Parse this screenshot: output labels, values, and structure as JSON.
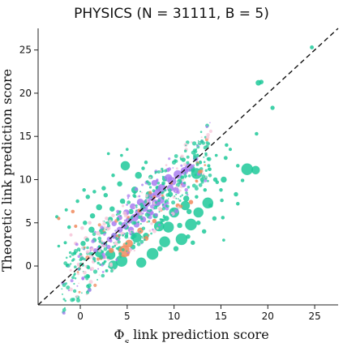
{
  "chart_data": {
    "type": "scatter",
    "title": "PHYSICS (N = 31111, B = 5)",
    "xlabel_prefix": "Φ",
    "xlabel_sub": "s",
    "xlabel_rest": " link prediction score",
    "ylabel": "Theoretic link prediction score",
    "xlim": [
      -4.5,
      27.5
    ],
    "ylim": [
      -4.5,
      27.5
    ],
    "xticks": [
      "0",
      "5",
      "10",
      "15",
      "20",
      "25"
    ],
    "yticks": [
      "0",
      "5",
      "10",
      "15",
      "20",
      "25"
    ],
    "xtick_values": [
      0,
      5,
      10,
      15,
      20,
      25
    ],
    "ytick_values": [
      0,
      5,
      10,
      15,
      20,
      25
    ],
    "reference_line": "y = x (dashed)",
    "grid": false,
    "colors": {
      "green": "#1fc99a",
      "purple": "#a97cf0",
      "orange": "#f08a5d",
      "pink": "#f6c6d8"
    },
    "series": [
      {
        "color_key": "green",
        "points": [
          [
            24.7,
            25.3,
            2.2
          ],
          [
            19.0,
            21.2,
            3.2
          ],
          [
            19.3,
            21.3,
            2.6
          ],
          [
            20.5,
            18.3,
            2.4
          ],
          [
            18.8,
            15.3,
            2.0
          ],
          [
            18.7,
            11.1,
            5.0
          ],
          [
            17.8,
            11.2,
            7.0
          ],
          [
            17.3,
            9.9,
            2.0
          ],
          [
            16.8,
            11.6,
            2.0
          ],
          [
            15.5,
            12.5,
            2.2
          ],
          [
            15.3,
            10.0,
            3.5
          ],
          [
            14.6,
            9.7,
            2.0
          ],
          [
            13.8,
            11.2,
            2.0
          ],
          [
            15.6,
            14.0,
            2.0
          ],
          [
            16.0,
            13.5,
            1.8
          ],
          [
            14.5,
            12.8,
            1.6
          ],
          [
            16.6,
            8.3,
            2.5
          ],
          [
            15.0,
            8.8,
            2.0
          ],
          [
            14.4,
            10.0,
            2.5
          ],
          [
            13.3,
            8.8,
            2.0
          ],
          [
            13.9,
            7.0,
            2.5
          ],
          [
            15.1,
            7.6,
            2.0
          ],
          [
            16.8,
            7.2,
            2.0
          ],
          [
            15.2,
            5.6,
            2.0
          ],
          [
            15.3,
            3.0,
            1.6
          ],
          [
            14.3,
            5.5,
            2.5
          ],
          [
            13.7,
            11.6,
            1.8
          ],
          [
            12.4,
            8.0,
            2.0
          ],
          [
            12.4,
            10.7,
            6.5
          ],
          [
            13.6,
            7.3,
            6.5
          ],
          [
            12.6,
            6.2,
            6.0
          ],
          [
            11.8,
            4.8,
            7.0
          ],
          [
            10.8,
            3.1,
            7.0
          ],
          [
            9.0,
            2.8,
            6.5
          ],
          [
            9.4,
            4.5,
            6.5
          ],
          [
            7.7,
            1.4,
            7.0
          ],
          [
            6.5,
            0.4,
            6.0
          ],
          [
            4.4,
            0.6,
            7.0
          ],
          [
            3.2,
            1.3,
            6.0
          ],
          [
            3.5,
            0.1,
            5.5
          ],
          [
            2.0,
            1.5,
            5.0
          ],
          [
            6.0,
            3.3,
            6.0
          ],
          [
            8.4,
            4.6,
            6.0
          ],
          [
            10.0,
            6.2,
            6.0
          ],
          [
            11.2,
            7.0,
            5.5
          ],
          [
            4.8,
            11.6,
            5.5
          ],
          [
            5.0,
            13.5,
            1.6
          ],
          [
            4.4,
            12.8,
            1.6
          ],
          [
            3.0,
            13.0,
            1.6
          ],
          [
            7.0,
            12.0,
            2.0
          ],
          [
            6.2,
            10.5,
            4.0
          ],
          [
            5.8,
            8.8,
            4.0
          ],
          [
            4.2,
            9.5,
            3.0
          ],
          [
            3.5,
            10.5,
            2.0
          ],
          [
            2.5,
            9.0,
            2.5
          ],
          [
            1.5,
            8.6,
            2.0
          ],
          [
            0.4,
            8.8,
            2.0
          ],
          [
            0.8,
            8.0,
            2.5
          ],
          [
            -0.3,
            7.5,
            2.0
          ],
          [
            -2.5,
            5.7,
            1.8
          ],
          [
            -1.5,
            6.5,
            1.8
          ],
          [
            -1.2,
            4.5,
            2.0
          ],
          [
            -1.6,
            2.7,
            1.8
          ],
          [
            -0.6,
            1.5,
            1.8
          ],
          [
            -2.3,
            2.3,
            1.5
          ],
          [
            0.3,
            2.6,
            3.0
          ],
          [
            1.2,
            4.2,
            3.5
          ],
          [
            2.3,
            4.0,
            3.5
          ],
          [
            2.0,
            6.8,
            3.5
          ],
          [
            3.4,
            6.6,
            3.0
          ],
          [
            4.5,
            7.5,
            3.0
          ],
          [
            2.7,
            8.2,
            2.5
          ],
          [
            1.3,
            5.8,
            3.0
          ],
          [
            0.5,
            5.0,
            2.5
          ],
          [
            3.2,
            5.4,
            3.0
          ],
          [
            4.9,
            4.5,
            3.0
          ],
          [
            7.3,
            8.3,
            3.5
          ],
          [
            8.2,
            7.2,
            3.5
          ],
          [
            9.2,
            5.5,
            3.0
          ],
          [
            10.6,
            4.7,
            3.0
          ],
          [
            11.5,
            3.4,
            2.5
          ],
          [
            12.0,
            2.7,
            2.5
          ],
          [
            10.2,
            2.0,
            3.0
          ],
          [
            8.5,
            2.0,
            3.0
          ],
          [
            7.0,
            3.5,
            3.5
          ],
          [
            6.3,
            5.8,
            3.5
          ],
          [
            5.4,
            6.3,
            3.0
          ],
          [
            3.6,
            3.5,
            3.0
          ],
          [
            2.6,
            2.5,
            3.0
          ],
          [
            1.5,
            3.0,
            2.5
          ],
          [
            4.2,
            2.0,
            3.0
          ],
          [
            5.6,
            2.2,
            3.0
          ],
          [
            8.0,
            5.8,
            3.0
          ],
          [
            9.6,
            8.3,
            3.0
          ],
          [
            10.6,
            9.8,
            3.0
          ],
          [
            11.0,
            12.3,
            2.5
          ],
          [
            12.0,
            11.3,
            2.5
          ],
          [
            13.0,
            10.0,
            2.5
          ],
          [
            12.8,
            12.0,
            2.0
          ],
          [
            13.4,
            13.0,
            1.5
          ],
          [
            11.3,
            7.8,
            3.5
          ],
          [
            11.6,
            6.3,
            3.0
          ],
          [
            12.6,
            5.0,
            2.5
          ],
          [
            13.2,
            4.0,
            2.5
          ],
          [
            9.0,
            10.1,
            3.0
          ],
          [
            8.3,
            9.0,
            3.0
          ],
          [
            7.5,
            10.3,
            2.5
          ],
          [
            6.7,
            11.3,
            2.0
          ]
        ]
      },
      {
        "color_key": "purple",
        "points": [
          [
            11.6,
            11.4,
            5.0
          ],
          [
            11.1,
            11.0,
            4.5
          ],
          [
            10.4,
            10.6,
            5.0
          ],
          [
            9.8,
            9.8,
            5.0
          ],
          [
            9.4,
            10.2,
            4.5
          ],
          [
            8.7,
            9.0,
            5.0
          ],
          [
            8.2,
            8.4,
            5.0
          ],
          [
            7.6,
            8.0,
            4.5
          ],
          [
            7.1,
            7.3,
            4.5
          ],
          [
            6.8,
            6.7,
            4.5
          ],
          [
            6.2,
            6.2,
            4.0
          ],
          [
            5.8,
            5.6,
            4.5
          ],
          [
            5.2,
            5.3,
            4.0
          ],
          [
            4.7,
            4.7,
            4.0
          ],
          [
            4.2,
            4.2,
            3.5
          ],
          [
            3.6,
            3.5,
            3.5
          ],
          [
            3.1,
            3.1,
            3.0
          ],
          [
            2.5,
            2.5,
            3.0
          ],
          [
            2.0,
            2.1,
            2.5
          ],
          [
            1.6,
            1.8,
            2.5
          ],
          [
            9.6,
            9.0,
            4.0
          ],
          [
            8.0,
            7.3,
            4.0
          ],
          [
            6.4,
            7.4,
            4.0
          ],
          [
            5.6,
            6.9,
            3.5
          ],
          [
            4.9,
            6.2,
            3.5
          ],
          [
            4.2,
            5.6,
            3.0
          ],
          [
            3.6,
            4.9,
            3.0
          ],
          [
            7.4,
            6.2,
            4.0
          ],
          [
            8.6,
            7.6,
            4.0
          ],
          [
            10.2,
            8.8,
            3.5
          ],
          [
            5.4,
            4.2,
            3.5
          ],
          [
            6.0,
            4.8,
            3.5
          ],
          [
            12.3,
            12.4,
            3.0
          ],
          [
            11.0,
            9.4,
            3.0
          ],
          [
            9.0,
            7.0,
            3.0
          ],
          [
            6.7,
            5.4,
            3.5
          ],
          [
            5.5,
            3.8,
            3.0
          ],
          [
            4.0,
            3.2,
            3.0
          ],
          [
            3.0,
            2.2,
            2.5
          ],
          [
            7.9,
            9.6,
            3.5
          ]
        ]
      },
      {
        "color_key": "orange",
        "points": [
          [
            4.7,
            1.7,
            7.0
          ],
          [
            5.2,
            2.6,
            4.5
          ],
          [
            3.3,
            1.8,
            3.0
          ],
          [
            6.4,
            4.1,
            3.5
          ],
          [
            7.0,
            3.2,
            3.0
          ],
          [
            11.8,
            7.4,
            2.5
          ],
          [
            7.9,
            5.2,
            2.5
          ],
          [
            10.4,
            7.0,
            2.5
          ],
          [
            -0.8,
            6.3,
            2.0
          ],
          [
            -0.5,
            4.6,
            1.8
          ],
          [
            -2.3,
            5.5,
            1.8
          ],
          [
            2.2,
            0.9,
            2.0
          ],
          [
            12.5,
            11.9,
            2.0
          ],
          [
            6.3,
            6.4,
            2.2
          ],
          [
            8.6,
            6.5,
            2.0
          ],
          [
            4.0,
            3.4,
            2.5
          ]
        ]
      },
      {
        "color_key": "pink",
        "points": [
          [
            1.2,
            2.0,
            2.5
          ],
          [
            0.6,
            3.2,
            2.5
          ],
          [
            1.9,
            3.8,
            2.5
          ],
          [
            0.1,
            1.2,
            2.0
          ],
          [
            -0.5,
            2.6,
            2.0
          ],
          [
            2.6,
            1.0,
            2.5
          ],
          [
            3.0,
            4.4,
            2.5
          ],
          [
            1.4,
            0.5,
            2.0
          ],
          [
            0.2,
            4.4,
            2.0
          ],
          [
            2.2,
            2.8,
            2.5
          ],
          [
            -1.0,
            3.6,
            1.8
          ],
          [
            3.8,
            2.6,
            2.5
          ],
          [
            1.0,
            5.0,
            2.0
          ],
          [
            4.5,
            3.7,
            2.5
          ],
          [
            -0.2,
            0.2,
            1.8
          ],
          [
            2.8,
            5.5,
            2.0
          ]
        ]
      }
    ]
  }
}
